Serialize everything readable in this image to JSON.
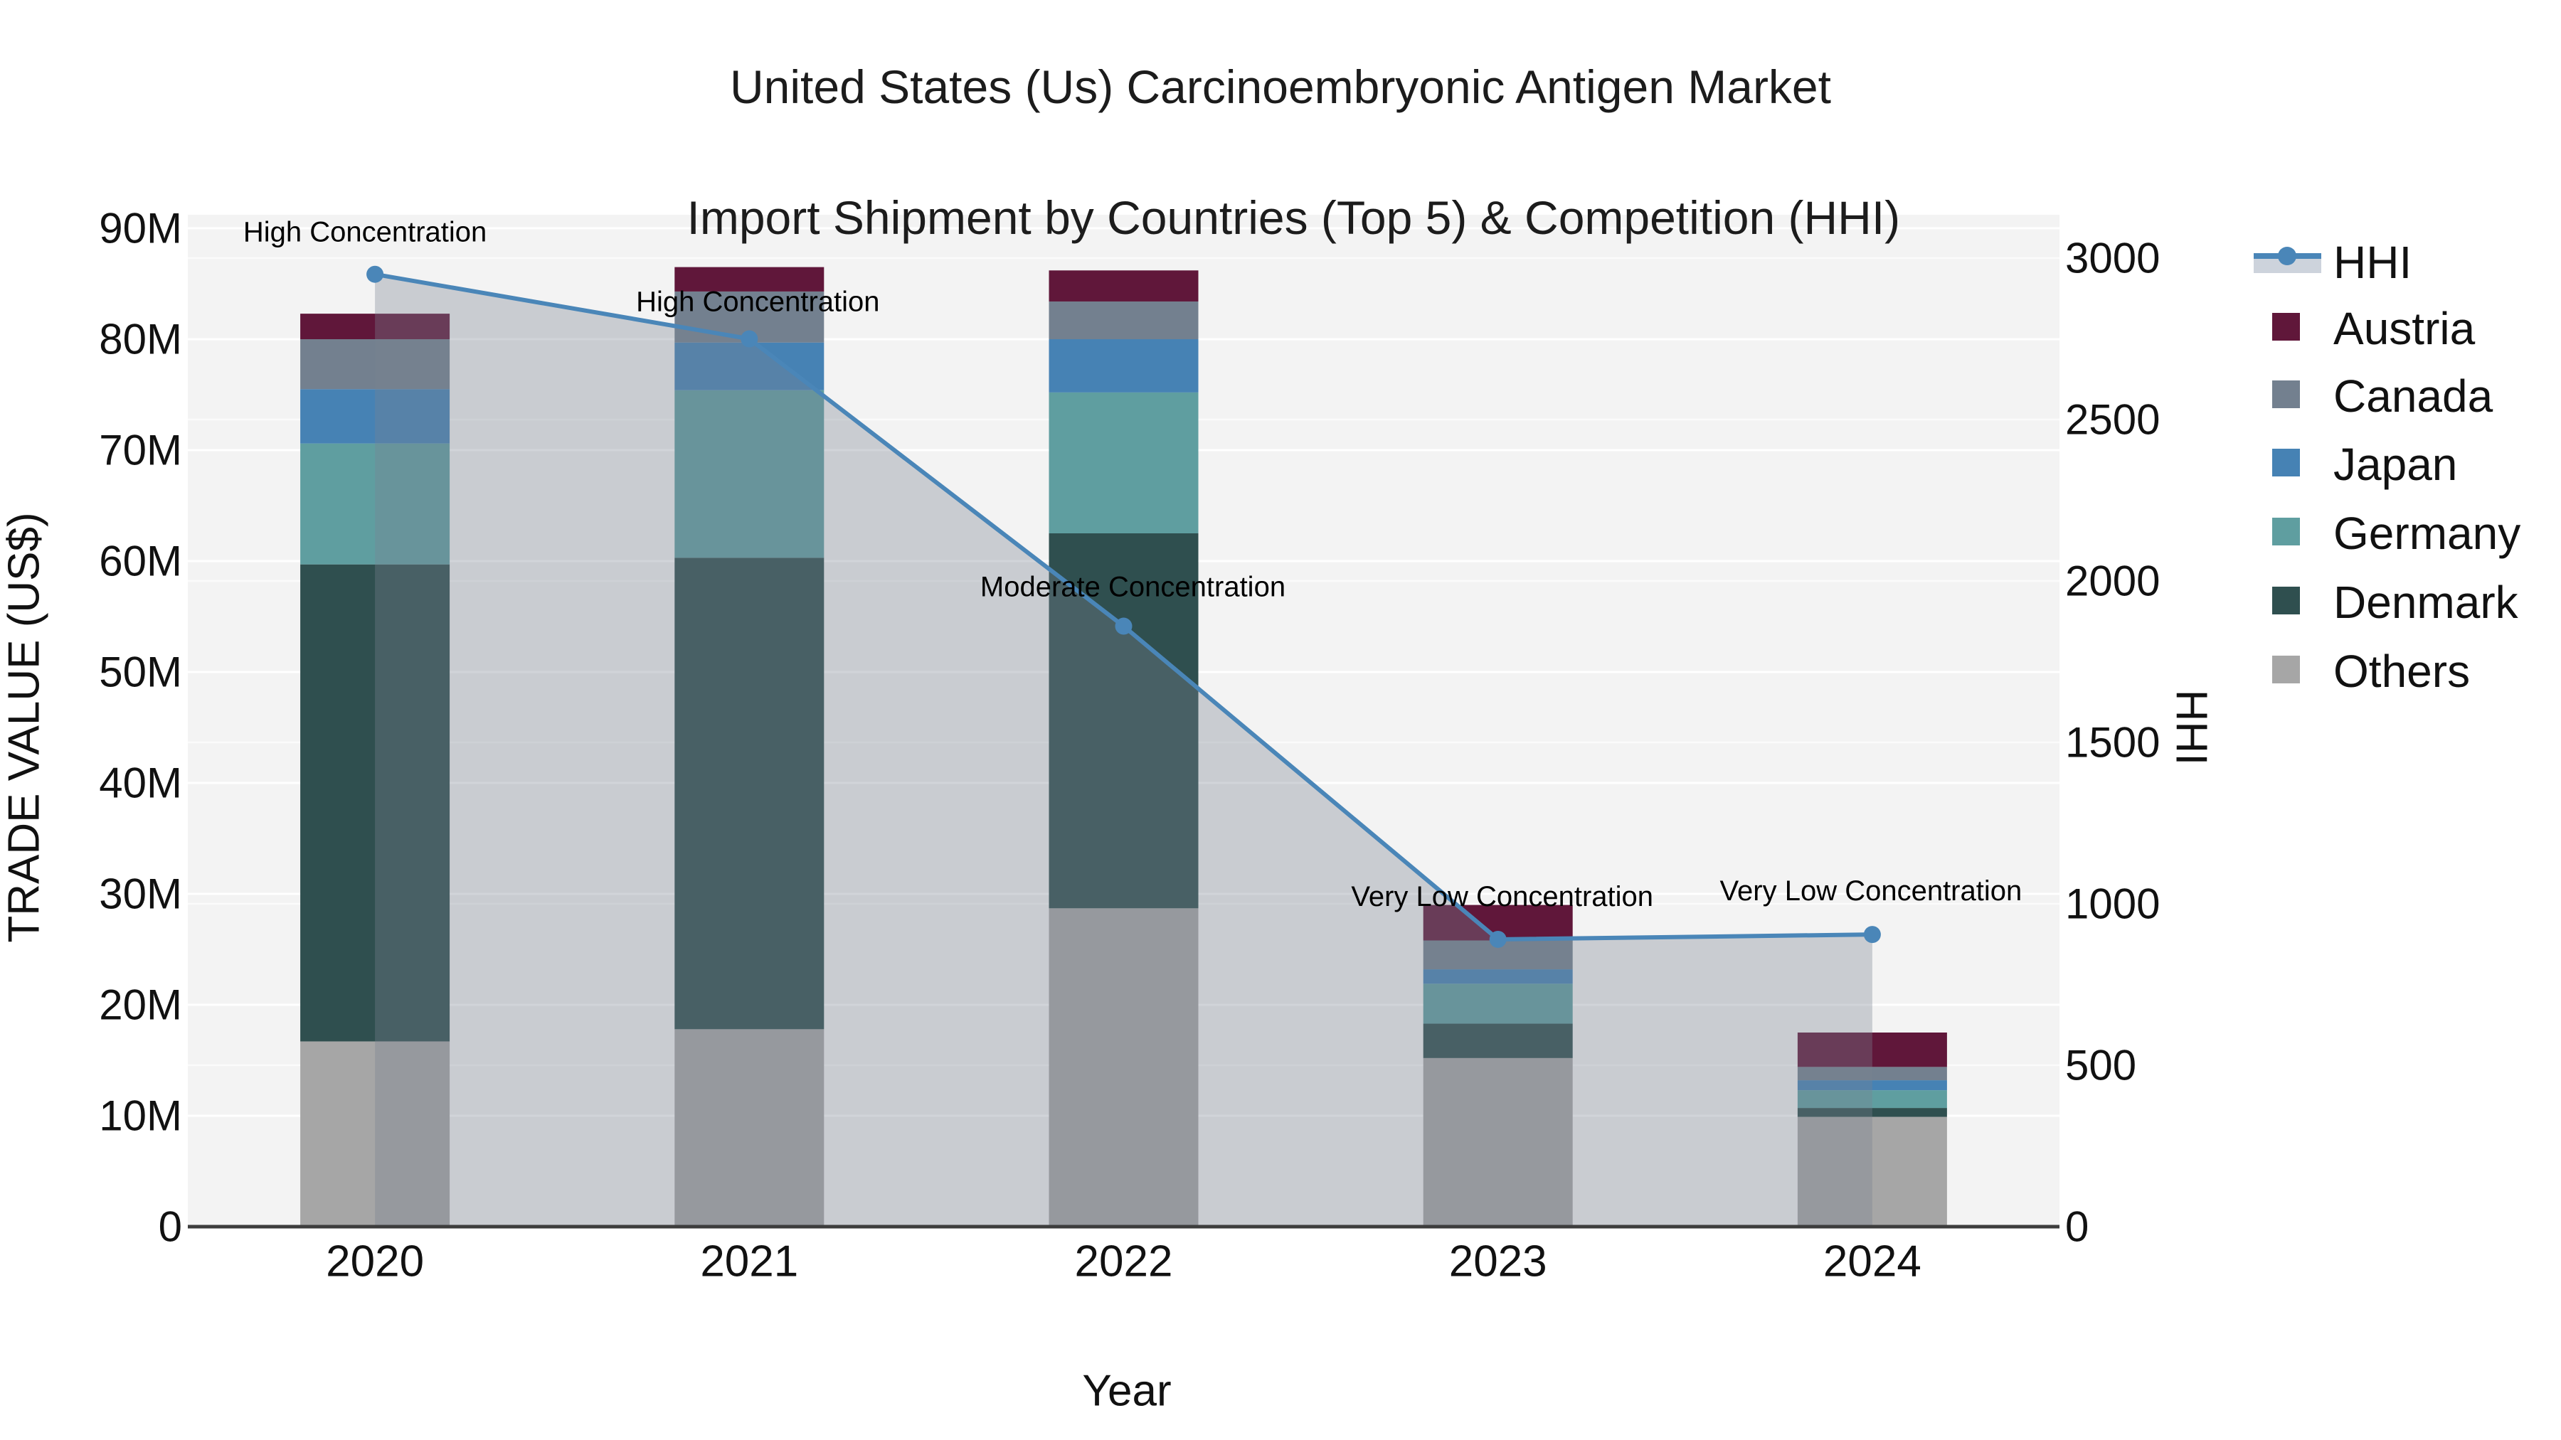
{
  "title": {
    "line1": "United States (Us) Carcinoembryonic Antigen Market",
    "line2": "Import Shipment by Countries (Top 5) & Competition (HHI)"
  },
  "axes": {
    "x": {
      "title": "Year",
      "tick_labels": [
        "2020",
        "2021",
        "2022",
        "2023",
        "2024"
      ]
    },
    "y_left": {
      "title": "TRADE VALUE (US$)",
      "ticks": [
        {
          "label": "0",
          "value": 0
        },
        {
          "label": "10M",
          "value": 10
        },
        {
          "label": "20M",
          "value": 20
        },
        {
          "label": "30M",
          "value": 30
        },
        {
          "label": "40M",
          "value": 40
        },
        {
          "label": "50M",
          "value": 50
        },
        {
          "label": "60M",
          "value": 60
        },
        {
          "label": "70M",
          "value": 70
        },
        {
          "label": "80M",
          "value": 80
        },
        {
          "label": "90M",
          "value": 90
        }
      ]
    },
    "y_right": {
      "title": "HHI",
      "ticks": [
        {
          "label": "0",
          "value": 0
        },
        {
          "label": "500",
          "value": 500
        },
        {
          "label": "1000",
          "value": 1000
        },
        {
          "label": "1500",
          "value": 1500
        },
        {
          "label": "2000",
          "value": 2000
        },
        {
          "label": "2500",
          "value": 2500
        },
        {
          "label": "3000",
          "value": 3000
        }
      ]
    }
  },
  "legend": {
    "items": [
      {
        "label": "HHI",
        "type": "line",
        "color": "#4a86b8",
        "band_color": "#cdd3dc"
      },
      {
        "label": "Austria",
        "type": "swatch",
        "color": "#60173a"
      },
      {
        "label": "Canada",
        "type": "swatch",
        "color": "#73808f"
      },
      {
        "label": "Japan",
        "type": "swatch",
        "color": "#4682b4"
      },
      {
        "label": "Germany",
        "type": "swatch",
        "color": "#5f9ea0"
      },
      {
        "label": "Denmark",
        "type": "swatch",
        "color": "#2f4f4f"
      },
      {
        "label": "Others",
        "type": "swatch",
        "color": "#a6a6a6"
      }
    ]
  },
  "annotations": [
    {
      "text": "High Concentration",
      "year": "2020"
    },
    {
      "text": "High Concentration",
      "year": "2021"
    },
    {
      "text": "Moderate Concentration",
      "year": "2022"
    },
    {
      "text": "Very Low Concentration",
      "year": "2023"
    },
    {
      "text": "Very Low Concentration",
      "year": "2024"
    }
  ],
  "chart_data": {
    "type": "bar",
    "subtype": "stacked-bars-with-line",
    "unit": "US$ millions (left axis), HHI index (right axis)",
    "categories": [
      "2020",
      "2021",
      "2022",
      "2023",
      "2024"
    ],
    "series": [
      {
        "name": "Others",
        "color": "#a6a6a6",
        "values": [
          16.7,
          17.8,
          28.7,
          15.2,
          9.9
        ]
      },
      {
        "name": "Denmark",
        "color": "#2f4f4f",
        "values": [
          43.0,
          42.5,
          33.8,
          3.1,
          0.8
        ]
      },
      {
        "name": "Germany",
        "color": "#5f9ea0",
        "values": [
          10.9,
          15.1,
          12.7,
          3.6,
          1.6
        ]
      },
      {
        "name": "Japan",
        "color": "#4682b4",
        "values": [
          4.9,
          4.3,
          4.8,
          1.3,
          0.9
        ]
      },
      {
        "name": "Canada",
        "color": "#73808f",
        "values": [
          4.5,
          4.6,
          3.4,
          2.6,
          1.2
        ]
      },
      {
        "name": "Austria",
        "color": "#60173a",
        "values": [
          2.3,
          2.2,
          2.8,
          3.2,
          3.1
        ]
      }
    ],
    "stack_totals": [
      82.3,
      86.5,
      86.2,
      29.0,
      17.5
    ],
    "line_series": {
      "name": "HHI",
      "axis": "right",
      "color": "#4a86b8",
      "fill_overlay_color": "rgba(123,129,145,0.345)",
      "values": [
        2950,
        2750,
        1860,
        890,
        905
      ]
    },
    "ylim_left": [
      0,
      90
    ],
    "ylim_right": [
      0,
      3000
    ],
    "grid": "horizontal gridlines for both axes, white on light gray",
    "plot_bg": "#f3f3f3",
    "legend_position": "right"
  }
}
